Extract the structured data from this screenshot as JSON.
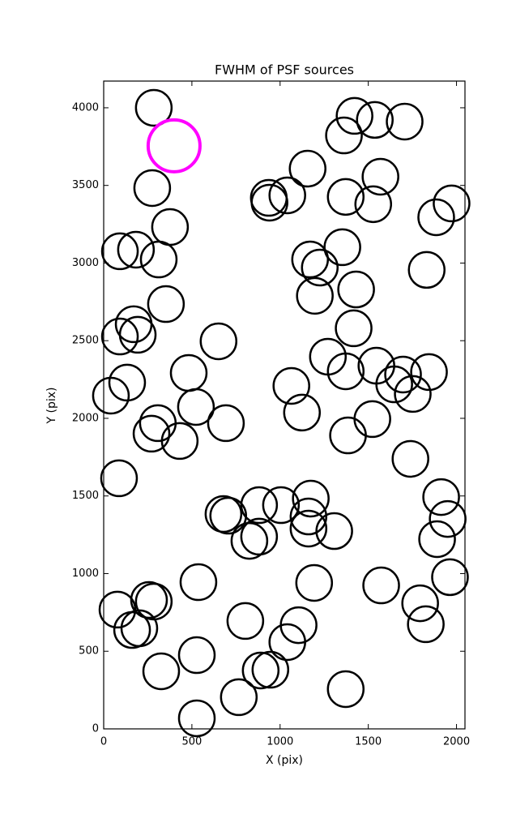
{
  "chart_data": {
    "type": "scatter",
    "title": "FWHM of PSF sources",
    "x_label": "X (pix)",
    "y_label": "Y (pix)",
    "xlim": [
      0,
      2048
    ],
    "ylim": [
      0,
      4172
    ],
    "xticks": [
      0,
      500,
      1000,
      1500,
      2000
    ],
    "yticks": [
      0,
      500,
      1000,
      1500,
      2000,
      2500,
      3000,
      3500,
      4000
    ],
    "grid": false,
    "series": [
      {
        "color": "#000000",
        "x": [
          284,
          275,
          376,
          183,
          92,
          312,
          353,
          170,
          193,
          92,
          133,
          41,
          482,
          523,
          651,
          693,
          307,
          271,
          431,
          87,
          679,
          706,
          881,
          826,
          881,
          1005,
          1174,
          1161,
          1161,
          1307,
          537,
          1193,
          78,
          257,
          284,
          161,
          202,
          326,
          528,
          528,
          803,
          766,
          890,
          945,
          1041,
          1105,
          1372,
          1573,
          1794,
          1826,
          1963,
          1890,
          1950,
          1913,
          1739,
          1844,
          1752,
          1697,
          1647,
          1546,
          1523,
          1385,
          1372,
          1271,
          1417,
          1431,
          1197,
          1225,
          1170,
          1353,
          1064,
          1124,
          1831,
          1885,
          1972,
          1528,
          1569,
          1372,
          1156,
          1041,
          936,
          940,
          1362,
          1422,
          1537,
          1706
        ],
        "values": [
          4000,
          3483,
          3232,
          3086,
          3076,
          3023,
          2736,
          2606,
          2538,
          2527,
          2230,
          2146,
          2292,
          2073,
          2496,
          1969,
          1969,
          1901,
          1854,
          1614,
          1384,
          1373,
          1441,
          1211,
          1238,
          1441,
          1483,
          1368,
          1290,
          1274,
          945,
          940,
          768,
          830,
          820,
          637,
          648,
          371,
          475,
          68,
          695,
          204,
          376,
          381,
          559,
          668,
          256,
          924,
          809,
          674,
          977,
          1222,
          1352,
          1493,
          1739,
          2298,
          2157,
          2282,
          2219,
          2339,
          1995,
          1890,
          2303,
          2397,
          2580,
          2830,
          2789,
          2971,
          3023,
          3102,
          2209,
          2037,
          2956,
          3295,
          3384,
          3379,
          3556,
          3426,
          3608,
          3436,
          3420,
          3389,
          3822,
          3948,
          3922,
          3911
        ]
      },
      {
        "color": "#ff00ff",
        "x": [
          399
        ],
        "values": [
          3755
        ]
      }
    ]
  }
}
